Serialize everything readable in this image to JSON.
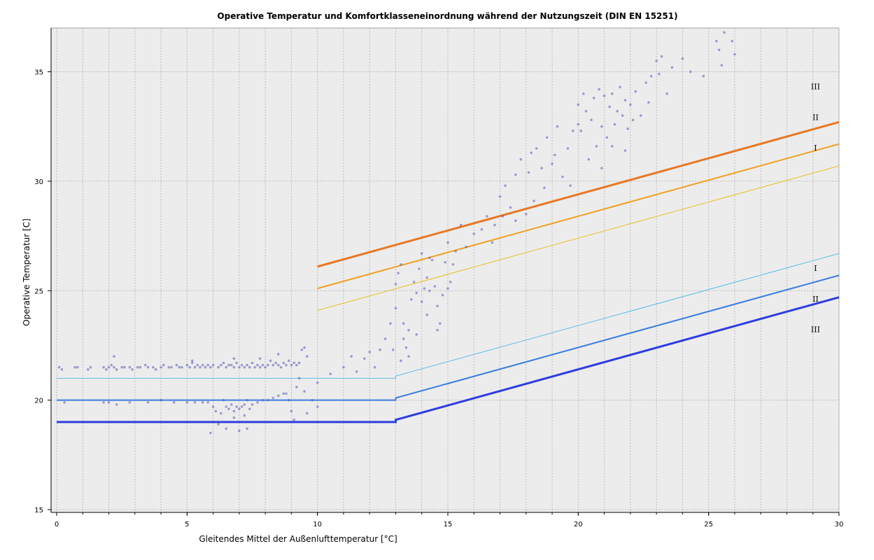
{
  "chart_data": {
    "type": "scatter",
    "title": "Operative Temperatur und Komfortklasseneinordnung während der Nutzungszeit (DIN EN 15251)",
    "xlabel": "Gleitendes Mittel der Außenlufttemperatur [°C]",
    "ylabel": "Operative Temperatur [C]",
    "xlim": [
      0,
      30
    ],
    "ylim": [
      15,
      37
    ],
    "xticks": [
      0,
      5,
      10,
      15,
      20,
      25,
      30
    ],
    "yticks": [
      15,
      20,
      25,
      30,
      35
    ],
    "grid": true,
    "background": "#ececec",
    "series": [
      {
        "name": "",
        "kind": "line",
        "color": "#e87722",
        "x": [
          10,
          30
        ],
        "y": [
          26.1,
          32.7
        ]
      },
      {
        "name": "",
        "kind": "line",
        "color": "#f0a020",
        "x": [
          10,
          30
        ],
        "y": [
          25.1,
          31.7
        ]
      },
      {
        "name": "",
        "kind": "line",
        "color": "#e8c020",
        "x": [
          10,
          30
        ],
        "y": [
          24.1,
          30.7
        ]
      },
      {
        "name": "",
        "kind": "line",
        "color": "#5bbde8",
        "x": [
          0,
          13,
          13,
          30
        ],
        "y": [
          21,
          21,
          21.1,
          26.7
        ]
      },
      {
        "name": "",
        "kind": "line",
        "color": "#3a7de0",
        "x": [
          0,
          13,
          13,
          30
        ],
        "y": [
          20,
          20,
          20.1,
          25.7
        ]
      },
      {
        "name": "",
        "kind": "line",
        "color": "#2e3de0",
        "x": [
          0,
          13,
          13,
          30
        ],
        "y": [
          19,
          19,
          19.1,
          24.7
        ]
      },
      {
        "name": "",
        "kind": "scatter",
        "color": "#5a5ab8",
        "points": [
          [
            0.1,
            21.5
          ],
          [
            0.2,
            21.4
          ],
          [
            0.3,
            19.9
          ],
          [
            0.7,
            21.5
          ],
          [
            0.8,
            21.5
          ],
          [
            1.2,
            21.4
          ],
          [
            1.3,
            21.5
          ],
          [
            1.8,
            21.5
          ],
          [
            1.9,
            21.4
          ],
          [
            2.0,
            21.5
          ],
          [
            2.1,
            21.6
          ],
          [
            2.2,
            21.5
          ],
          [
            2.2,
            22.0
          ],
          [
            2.3,
            21.4
          ],
          [
            2.5,
            21.5
          ],
          [
            2.6,
            21.5
          ],
          [
            2.8,
            21.5
          ],
          [
            2.9,
            21.4
          ],
          [
            3.1,
            21.5
          ],
          [
            3.2,
            21.5
          ],
          [
            3.4,
            21.6
          ],
          [
            3.5,
            21.5
          ],
          [
            3.7,
            21.5
          ],
          [
            3.8,
            21.4
          ],
          [
            4.0,
            21.5
          ],
          [
            4.1,
            21.6
          ],
          [
            4.3,
            21.5
          ],
          [
            4.4,
            21.5
          ],
          [
            4.6,
            21.6
          ],
          [
            4.7,
            21.5
          ],
          [
            4.8,
            21.5
          ],
          [
            5.0,
            21.6
          ],
          [
            5.1,
            21.5
          ],
          [
            5.2,
            21.7
          ],
          [
            5.3,
            21.5
          ],
          [
            5.4,
            21.6
          ],
          [
            5.5,
            21.5
          ],
          [
            5.6,
            21.6
          ],
          [
            5.7,
            21.5
          ],
          [
            5.8,
            21.6
          ],
          [
            5.9,
            21.5
          ],
          [
            6.0,
            21.6
          ],
          [
            6.2,
            21.5
          ],
          [
            6.3,
            21.6
          ],
          [
            6.4,
            21.7
          ],
          [
            6.5,
            21.5
          ],
          [
            6.6,
            21.6
          ],
          [
            6.7,
            21.6
          ],
          [
            6.8,
            21.5
          ],
          [
            6.9,
            21.7
          ],
          [
            7.0,
            21.5
          ],
          [
            7.1,
            21.6
          ],
          [
            7.2,
            21.5
          ],
          [
            7.3,
            21.6
          ],
          [
            7.4,
            21.5
          ],
          [
            7.5,
            21.7
          ],
          [
            7.6,
            21.5
          ],
          [
            7.7,
            21.6
          ],
          [
            7.8,
            21.5
          ],
          [
            7.9,
            21.6
          ],
          [
            8.0,
            21.5
          ],
          [
            8.1,
            21.6
          ],
          [
            8.2,
            21.8
          ],
          [
            8.3,
            21.6
          ],
          [
            8.4,
            21.7
          ],
          [
            8.5,
            21.6
          ],
          [
            8.6,
            21.5
          ],
          [
            8.7,
            21.7
          ],
          [
            8.8,
            21.6
          ],
          [
            8.9,
            21.8
          ],
          [
            9.0,
            21.6
          ],
          [
            9.1,
            21.7
          ],
          [
            9.2,
            21.6
          ],
          [
            9.3,
            21.7
          ],
          [
            9.4,
            22.3
          ],
          [
            9.5,
            22.4
          ],
          [
            9.6,
            22.0
          ],
          [
            8.5,
            22.1
          ],
          [
            7.8,
            21.9
          ],
          [
            6.8,
            21.9
          ],
          [
            5.2,
            21.8
          ],
          [
            1.8,
            19.9
          ],
          [
            2.0,
            19.9
          ],
          [
            2.3,
            19.8
          ],
          [
            2.8,
            19.9
          ],
          [
            3.5,
            19.9
          ],
          [
            4.0,
            20.0
          ],
          [
            4.5,
            19.9
          ],
          [
            5.0,
            19.9
          ],
          [
            5.3,
            19.9
          ],
          [
            5.6,
            19.9
          ],
          [
            5.8,
            19.9
          ],
          [
            6.0,
            19.7
          ],
          [
            6.1,
            19.5
          ],
          [
            6.2,
            18.9
          ],
          [
            6.3,
            19.4
          ],
          [
            6.4,
            20.0
          ],
          [
            6.5,
            19.7
          ],
          [
            6.6,
            19.6
          ],
          [
            6.7,
            19.8
          ],
          [
            6.8,
            19.5
          ],
          [
            6.9,
            19.7
          ],
          [
            7.0,
            19.6
          ],
          [
            7.1,
            19.7
          ],
          [
            7.2,
            19.8
          ],
          [
            7.3,
            20.0
          ],
          [
            7.4,
            19.6
          ],
          [
            7.5,
            19.8
          ],
          [
            7.7,
            19.9
          ],
          [
            7.9,
            20.0
          ],
          [
            8.1,
            20.0
          ],
          [
            8.3,
            20.1
          ],
          [
            8.5,
            20.2
          ],
          [
            8.7,
            20.3
          ],
          [
            8.8,
            20.3
          ],
          [
            8.9,
            20.0
          ],
          [
            9.0,
            19.5
          ],
          [
            9.1,
            19.1
          ],
          [
            9.2,
            20.6
          ],
          [
            9.3,
            21.0
          ],
          [
            9.5,
            20.4
          ],
          [
            9.6,
            19.4
          ],
          [
            9.8,
            20.0
          ],
          [
            5.9,
            18.5
          ],
          [
            6.5,
            18.7
          ],
          [
            7.0,
            18.6
          ],
          [
            7.3,
            18.7
          ],
          [
            6.3,
            19.0
          ],
          [
            6.8,
            19.2
          ],
          [
            7.2,
            19.3
          ],
          [
            10.0,
            19.7
          ],
          [
            10.0,
            20.8
          ],
          [
            10.5,
            21.2
          ],
          [
            11.0,
            21.5
          ],
          [
            11.3,
            22.0
          ],
          [
            11.5,
            21.3
          ],
          [
            11.8,
            21.9
          ],
          [
            12.0,
            22.2
          ],
          [
            12.2,
            21.5
          ],
          [
            12.4,
            22.3
          ],
          [
            12.6,
            22.8
          ],
          [
            12.8,
            23.5
          ],
          [
            13.0,
            24.2
          ],
          [
            13.0,
            25.3
          ],
          [
            13.1,
            25.8
          ],
          [
            13.2,
            26.2
          ],
          [
            13.3,
            23.5
          ],
          [
            13.3,
            22.8
          ],
          [
            13.4,
            22.4
          ],
          [
            13.5,
            23.2
          ],
          [
            13.6,
            24.6
          ],
          [
            13.7,
            25.4
          ],
          [
            13.8,
            24.9
          ],
          [
            13.9,
            26.0
          ],
          [
            14.0,
            24.5
          ],
          [
            14.1,
            25.1
          ],
          [
            14.2,
            25.6
          ],
          [
            14.3,
            25.0
          ],
          [
            14.4,
            26.4
          ],
          [
            14.5,
            25.2
          ],
          [
            14.6,
            24.3
          ],
          [
            14.7,
            23.5
          ],
          [
            14.8,
            24.8
          ],
          [
            14.9,
            26.3
          ],
          [
            15.0,
            27.2
          ],
          [
            15.1,
            25.4
          ],
          [
            15.3,
            26.8
          ],
          [
            15.5,
            28.0
          ],
          [
            15.7,
            27.0
          ],
          [
            16.0,
            27.6
          ],
          [
            16.3,
            27.8
          ],
          [
            16.5,
            28.4
          ],
          [
            16.8,
            28.0
          ],
          [
            17.0,
            29.3
          ],
          [
            17.2,
            29.8
          ],
          [
            17.4,
            28.8
          ],
          [
            17.6,
            30.3
          ],
          [
            17.8,
            31.0
          ],
          [
            18.0,
            28.5
          ],
          [
            18.1,
            30.4
          ],
          [
            18.2,
            31.3
          ],
          [
            18.4,
            31.5
          ],
          [
            18.6,
            30.6
          ],
          [
            18.8,
            32.0
          ],
          [
            19.0,
            30.8
          ],
          [
            19.2,
            32.5
          ],
          [
            19.4,
            30.2
          ],
          [
            19.6,
            31.5
          ],
          [
            19.8,
            32.3
          ],
          [
            20.0,
            33.5
          ],
          [
            20.1,
            32.3
          ],
          [
            20.2,
            34.0
          ],
          [
            20.3,
            33.2
          ],
          [
            20.4,
            31.0
          ],
          [
            20.5,
            32.8
          ],
          [
            20.6,
            33.8
          ],
          [
            20.7,
            31.6
          ],
          [
            20.8,
            34.2
          ],
          [
            20.9,
            32.5
          ],
          [
            21.0,
            33.9
          ],
          [
            21.1,
            32.0
          ],
          [
            21.2,
            33.4
          ],
          [
            21.3,
            34.0
          ],
          [
            21.4,
            32.6
          ],
          [
            21.5,
            33.2
          ],
          [
            21.6,
            34.3
          ],
          [
            21.7,
            33.0
          ],
          [
            21.8,
            33.7
          ],
          [
            21.9,
            32.4
          ],
          [
            22.0,
            33.5
          ],
          [
            22.2,
            34.1
          ],
          [
            22.4,
            33.0
          ],
          [
            22.6,
            34.5
          ],
          [
            22.8,
            34.8
          ],
          [
            23.0,
            35.5
          ],
          [
            23.1,
            34.9
          ],
          [
            23.2,
            35.7
          ],
          [
            23.4,
            34.0
          ],
          [
            23.6,
            35.2
          ],
          [
            24.0,
            35.6
          ],
          [
            24.3,
            35.0
          ],
          [
            24.8,
            34.8
          ],
          [
            25.4,
            36.0
          ],
          [
            25.5,
            35.3
          ],
          [
            25.6,
            36.8
          ],
          [
            25.9,
            36.4
          ],
          [
            26.0,
            35.8
          ],
          [
            25.3,
            36.4
          ],
          [
            13.5,
            22.0
          ],
          [
            13.8,
            23.0
          ],
          [
            14.2,
            23.9
          ],
          [
            14.6,
            23.2
          ],
          [
            15.0,
            25.1
          ],
          [
            13.2,
            21.8
          ],
          [
            12.9,
            22.3
          ],
          [
            14.0,
            26.7
          ],
          [
            14.3,
            26.5
          ],
          [
            15.2,
            26.2
          ],
          [
            17.6,
            28.2
          ],
          [
            18.3,
            29.1
          ],
          [
            19.1,
            31.2
          ],
          [
            20.9,
            30.6
          ],
          [
            21.3,
            31.6
          ],
          [
            22.1,
            32.8
          ],
          [
            22.7,
            33.6
          ],
          [
            19.7,
            29.8
          ],
          [
            16.7,
            27.2
          ],
          [
            17.1,
            28.4
          ],
          [
            18.7,
            29.7
          ],
          [
            20.0,
            32.6
          ],
          [
            21.8,
            31.4
          ]
        ]
      }
    ],
    "band_labels": [
      {
        "text": "III",
        "x": 29.1,
        "y": 34.2
      },
      {
        "text": "II",
        "x": 29.1,
        "y": 32.8
      },
      {
        "text": "I",
        "x": 29.1,
        "y": 31.4
      },
      {
        "text": "I",
        "x": 29.1,
        "y": 25.9
      },
      {
        "text": "II",
        "x": 29.1,
        "y": 24.5
      },
      {
        "text": "III",
        "x": 29.1,
        "y": 23.1
      }
    ]
  }
}
